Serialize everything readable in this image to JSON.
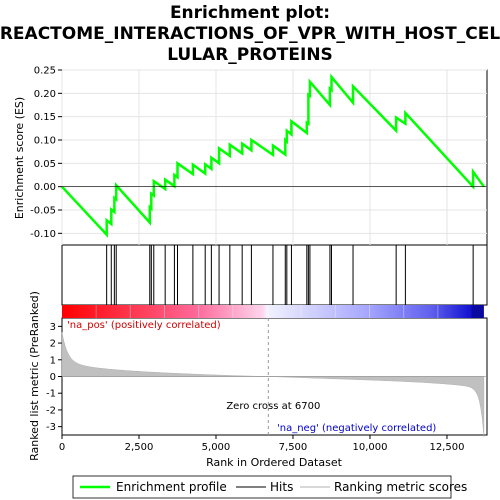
{
  "chart_data": {
    "type": "line",
    "title_lines": [
      "Enrichment plot:",
      "REACTOME_INTERACTIONS_OF_VPR_WITH_HOST_CEL",
      "LULAR_PROTEINS"
    ],
    "xlabel": "Rank in Ordered Dataset",
    "ylabel_top": "Enrichment score (ES)",
    "ylabel_bottom": "Ranked list metric (PreRanked)",
    "xlim": [
      0,
      13800
    ],
    "x_ticks": [
      0,
      2500,
      5000,
      7500,
      10000,
      12500
    ],
    "x_tick_labels": [
      "0",
      "2,500",
      "5,000",
      "7,500",
      "10,000",
      "12,500"
    ],
    "es_ylim": [
      -0.125,
      0.25
    ],
    "es_ticks": [
      -0.1,
      -0.05,
      0.0,
      0.05,
      0.1,
      0.15,
      0.2,
      0.25
    ],
    "es_tick_labels": [
      "-0.10",
      "-0.05",
      "0.00",
      "0.05",
      "0.10",
      "0.15",
      "0.20",
      "0.25"
    ],
    "metric_ylim": [
      -3.5,
      3.5
    ],
    "metric_ticks": [
      3,
      2,
      1,
      0,
      -1,
      -2,
      -3
    ],
    "metric_tick_labels": [
      "3",
      "2",
      "1",
      "0",
      "-1",
      "-2",
      "-3"
    ],
    "hits": [
      1450,
      1600,
      1700,
      1760,
      2850,
      2900,
      2980,
      3350,
      3650,
      3750,
      4250,
      4650,
      4850,
      5100,
      5450,
      5850,
      6150,
      6850,
      7250,
      7300,
      7450,
      7950,
      8000,
      8050,
      8700,
      8750,
      9450,
      10850,
      11150,
      13350
    ],
    "series": [
      {
        "name": "Enrichment profile",
        "color": "#00ff00",
        "x": [
          0,
          1450,
          1450,
          1600,
          1600,
          1700,
          1700,
          1760,
          1760,
          2850,
          2850,
          2900,
          2900,
          2980,
          2980,
          3350,
          3350,
          3650,
          3650,
          3750,
          3750,
          4250,
          4250,
          4650,
          4650,
          4850,
          4850,
          5100,
          5100,
          5450,
          5450,
          5850,
          5850,
          6150,
          6150,
          6850,
          6850,
          7250,
          7250,
          7300,
          7300,
          7450,
          7450,
          7950,
          7950,
          8000,
          8000,
          8050,
          8050,
          8700,
          8700,
          8750,
          8750,
          9450,
          9450,
          10850,
          10850,
          11150,
          11150,
          13350,
          13350,
          13700
        ],
        "y": [
          0.0,
          -0.103,
          -0.072,
          -0.08,
          -0.049,
          -0.054,
          -0.024,
          -0.027,
          0.003,
          -0.077,
          -0.044,
          -0.047,
          -0.015,
          -0.019,
          0.012,
          -0.005,
          0.015,
          0.001,
          0.025,
          0.02,
          0.05,
          0.027,
          0.047,
          0.028,
          0.048,
          0.038,
          0.062,
          0.05,
          0.082,
          0.066,
          0.09,
          0.071,
          0.092,
          0.078,
          0.1,
          0.068,
          0.088,
          0.069,
          0.1,
          0.097,
          0.12,
          0.112,
          0.14,
          0.115,
          0.137,
          0.135,
          0.197,
          0.195,
          0.225,
          0.175,
          0.21,
          0.207,
          0.235,
          0.18,
          0.215,
          0.12,
          0.148,
          0.135,
          0.158,
          0.0,
          0.032,
          0.0
        ]
      }
    ],
    "zero_cross_label": "Zero cross at 6700",
    "zero_cross_x": 6700,
    "pos_label": "'na_pos' (positively correlated)",
    "neg_label": "'na_neg' (negatively correlated)",
    "legend": [
      "Enrichment profile",
      "Hits",
      "Ranking metric scores"
    ],
    "colors": {
      "profile": "#00ff00",
      "pos_label": "#cc0000",
      "neg_label": "#0000cc",
      "metric": "#c0c0c0",
      "hits": "#000000"
    }
  }
}
